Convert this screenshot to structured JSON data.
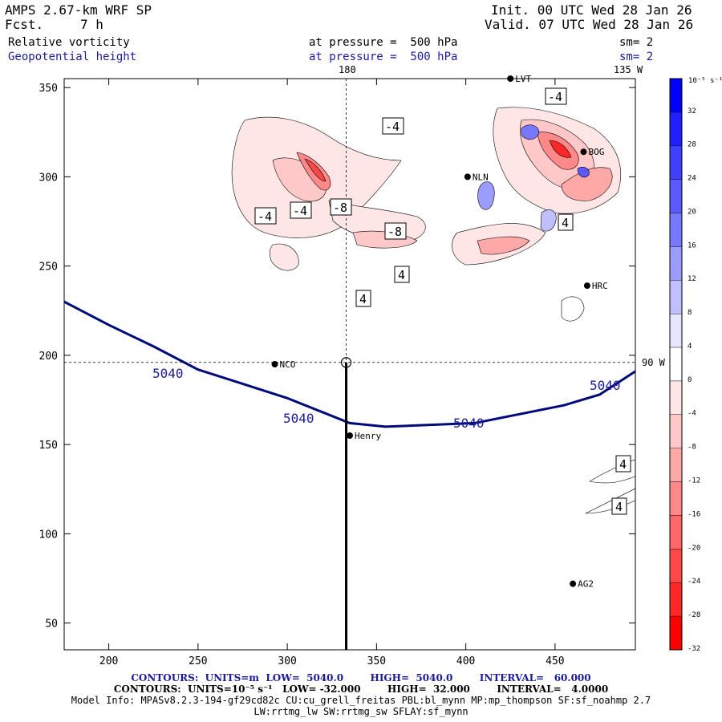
{
  "header": {
    "model": "AMPS 2.67-km WRF SP",
    "fcst_label": "Fcst.",
    "fcst_value": "7 h",
    "init": "Init. 00 UTC Wed 28 Jan 26",
    "valid": "Valid. 07 UTC Wed 28 Jan 26",
    "field1": "Relative vorticity",
    "field2": "Geopotential height",
    "pressure1": "at pressure =  500 hPa",
    "pressure2": "at pressure =  500 hPa",
    "sm1": "sm= 2",
    "sm2": "sm= 2",
    "top_lon_left": "180",
    "top_lon_right": "135 W",
    "right_lon": "90 W"
  },
  "colorbar": {
    "unit": "10⁻⁵ s⁻¹",
    "levels": [
      "32",
      "28",
      "24",
      "20",
      "16",
      "12",
      "8",
      "4",
      "0",
      "-4",
      "-8",
      "-12",
      "-16",
      "-20",
      "-24",
      "-28",
      "-32"
    ],
    "colors": [
      "#0000ff",
      "#2020ff",
      "#4040ff",
      "#5a5aff",
      "#7878ff",
      "#9c9cff",
      "#c0c0ff",
      "#e6e6ff",
      "#ffffff",
      "#ffe6e6",
      "#ffc8c8",
      "#ffa8a8",
      "#ff8888",
      "#ff6868",
      "#ff4848",
      "#ff2828",
      "#ff0000"
    ]
  },
  "stations": [
    {
      "name": "LVT"
    },
    {
      "name": "BOG"
    },
    {
      "name": "NLN"
    },
    {
      "name": "HRC"
    },
    {
      "name": "NCO"
    },
    {
      "name": "Henry"
    },
    {
      "name": "AG2"
    }
  ],
  "contour_labels": {
    "height": [
      "5040",
      "5040",
      "5040",
      "5040"
    ],
    "vort": [
      "-4",
      "-4",
      "-4",
      "-4",
      "-8",
      "-8",
      "4",
      "4",
      "4",
      "4",
      "4"
    ]
  },
  "chart_data": {
    "type": "contour map",
    "title": "Relative vorticity / Geopotential height at 500 hPa",
    "xlim": [
      175,
      495
    ],
    "ylim": [
      35,
      355
    ],
    "xticks": [
      200,
      250,
      300,
      350,
      400,
      450
    ],
    "yticks": [
      50,
      100,
      150,
      200,
      250,
      300,
      350
    ],
    "height_contour": {
      "name": "5040 m",
      "points": [
        [
          175,
          230
        ],
        [
          200,
          217
        ],
        [
          225,
          205
        ],
        [
          250,
          192
        ],
        [
          275,
          184
        ],
        [
          300,
          176
        ],
        [
          320,
          168
        ],
        [
          335,
          162
        ],
        [
          355,
          160
        ],
        [
          380,
          161
        ],
        [
          405,
          162
        ],
        [
          430,
          167
        ],
        [
          455,
          172
        ],
        [
          475,
          178
        ],
        [
          495,
          191
        ]
      ]
    },
    "cross_section": {
      "x": [
        333,
        333
      ],
      "y": [
        35,
        196
      ]
    },
    "dashed_refs": {
      "lon_x": 333,
      "lat_y": 196
    },
    "station_positions": [
      {
        "name": "LVT",
        "x": 425,
        "y": 355
      },
      {
        "name": "BOG",
        "x": 466,
        "y": 314
      },
      {
        "name": "NLN",
        "x": 401,
        "y": 300
      },
      {
        "name": "HRC",
        "x": 468,
        "y": 239
      },
      {
        "name": "NCO",
        "x": 293,
        "y": 195
      },
      {
        "name": "Henry",
        "x": 335,
        "y": 155
      },
      {
        "name": "AG2",
        "x": 460,
        "y": 72
      }
    ]
  },
  "footer": {
    "line1": "CONTOURS:  UNITS=m  LOW=  5040.0        HIGH=  5040.0        INTERVAL=   60.000",
    "line2": "CONTOURS:  UNITS=10⁻⁵ s⁻¹   LOW= -32.000        HIGH=  32.000        INTERVAL=   4.0000",
    "line3": "Model Info: MPASv8.2.3-194-gf29cd82c CU:cu_grell_freitas PBL:bl_mynn MP:mp_thompson SF:sf_noahmp 2.7",
    "line4": "LW:rrtmg_lw SW:rrtmg_sw SFLAY:sf_mynn"
  }
}
